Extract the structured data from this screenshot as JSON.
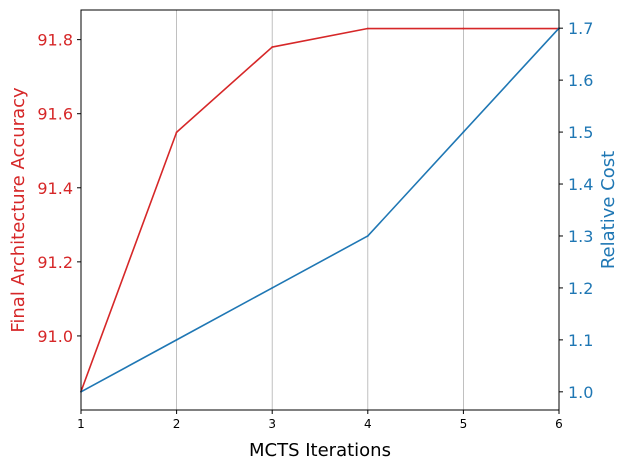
{
  "chart_data": {
    "type": "line",
    "title": "",
    "x": [
      1,
      2,
      3,
      4,
      5,
      6
    ],
    "xlabel": "MCTS Iterations",
    "xlim": [
      1,
      6
    ],
    "xticks": [
      "1",
      "2",
      "3",
      "4",
      "5",
      "6"
    ],
    "grid": "vertical",
    "y_left": {
      "label": "Final Architecture Accuracy",
      "color": "#d62728",
      "ylim": [
        90.8,
        91.88
      ],
      "ticks": [
        "91.0",
        "91.2",
        "91.4",
        "91.6",
        "91.8"
      ],
      "tick_values": [
        91.0,
        91.2,
        91.4,
        91.6,
        91.8
      ]
    },
    "y_right": {
      "label": "Relative Cost",
      "color": "#1f77b4",
      "ylim": [
        0.965,
        1.735
      ],
      "ticks": [
        "1.0",
        "1.1",
        "1.2",
        "1.3",
        "1.4",
        "1.5",
        "1.6",
        "1.7"
      ],
      "tick_values": [
        1.0,
        1.1,
        1.2,
        1.3,
        1.4,
        1.5,
        1.6,
        1.7
      ]
    },
    "series": [
      {
        "axis": "left",
        "color": "#d62728",
        "values": [
          90.85,
          91.55,
          91.78,
          91.83,
          91.83,
          91.83
        ]
      },
      {
        "axis": "right",
        "color": "#1f77b4",
        "values": [
          1.0,
          1.1,
          1.2,
          1.3,
          1.5,
          1.7
        ]
      }
    ]
  }
}
